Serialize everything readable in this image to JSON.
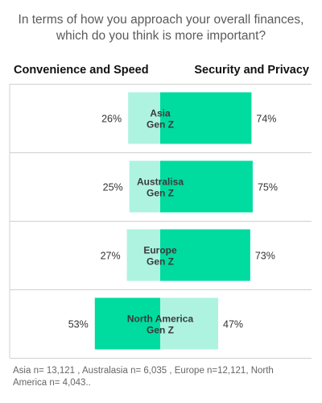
{
  "header": {
    "title": "In terms of how you approach your overall finances, which do you think is more important?",
    "left_label": "Convenience and Speed",
    "right_label": "Security and Privacy"
  },
  "chart_data": {
    "type": "bar",
    "orientation": "horizontal-stacked",
    "categories": [
      "Asia\nGen Z",
      "Australisa\nGen Z",
      "Europe\nGen Z",
      "North America\nGen Z"
    ],
    "series": [
      {
        "name": "Convenience and Speed",
        "values": [
          26,
          25,
          27,
          53
        ]
      },
      {
        "name": "Security and Privacy",
        "values": [
          74,
          75,
          73,
          47
        ]
      }
    ],
    "value_suffix": "%",
    "colors": {
      "majority": "#00dba0",
      "minority": "#adf3e0",
      "grid": "#d0d0d0"
    },
    "legend": "top"
  },
  "footnote": "Asia n= 13,121 , Australasia n= 6,035 , Europe n=12,121, North America n= 4,043.."
}
